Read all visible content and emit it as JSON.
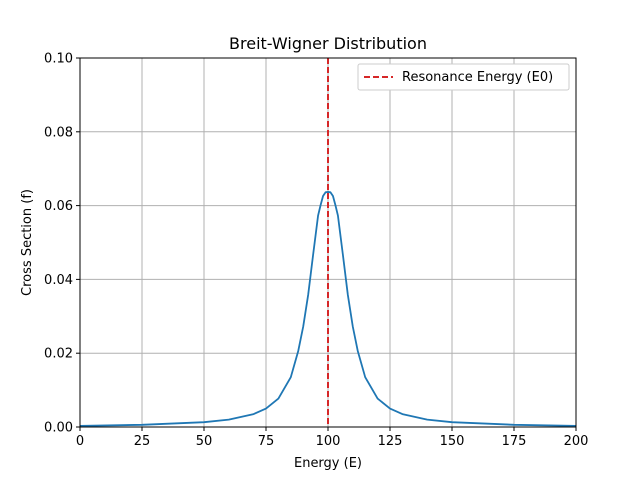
{
  "chart_data": {
    "type": "line",
    "title": "Breit-Wigner Distribution",
    "xlabel": "Energy (E)",
    "ylabel": "Cross Section (f)",
    "xlim": [
      0,
      200
    ],
    "ylim": [
      0,
      0.1
    ],
    "xticks": [
      0,
      25,
      50,
      75,
      100,
      125,
      150,
      175,
      200
    ],
    "xtick_labels": [
      "0",
      "25",
      "50",
      "75",
      "100",
      "125",
      "150",
      "175",
      "200"
    ],
    "yticks": [
      0,
      0.02,
      0.04,
      0.06,
      0.08,
      0.1
    ],
    "ytick_labels": [
      "0.00",
      "0.02",
      "0.04",
      "0.06",
      "0.08",
      "0.10"
    ],
    "grid": true,
    "legend_position": "top-right",
    "series": [
      {
        "color": "#1f77b4",
        "style": "solid",
        "x": [
          0,
          25,
          50,
          60,
          70,
          75,
          80,
          85,
          88,
          90,
          92,
          94,
          96,
          97,
          98,
          99,
          100,
          101,
          102,
          103,
          104,
          106,
          108,
          110,
          112,
          115,
          120,
          125,
          130,
          140,
          150,
          175,
          200
        ],
        "y": [
          0.0003,
          0.0006,
          0.0013,
          0.002,
          0.0035,
          0.005,
          0.0077,
          0.0135,
          0.0206,
          0.0272,
          0.0358,
          0.0467,
          0.0573,
          0.0601,
          0.0626,
          0.0636,
          0.0637,
          0.0636,
          0.0626,
          0.0601,
          0.0573,
          0.0467,
          0.0358,
          0.0272,
          0.0206,
          0.0135,
          0.0077,
          0.005,
          0.0035,
          0.002,
          0.0013,
          0.0006,
          0.0003
        ]
      },
      {
        "name": "Resonance Energy (E0)",
        "color": "#d62728",
        "style": "dashed",
        "vertical_line_x": 100
      }
    ]
  }
}
